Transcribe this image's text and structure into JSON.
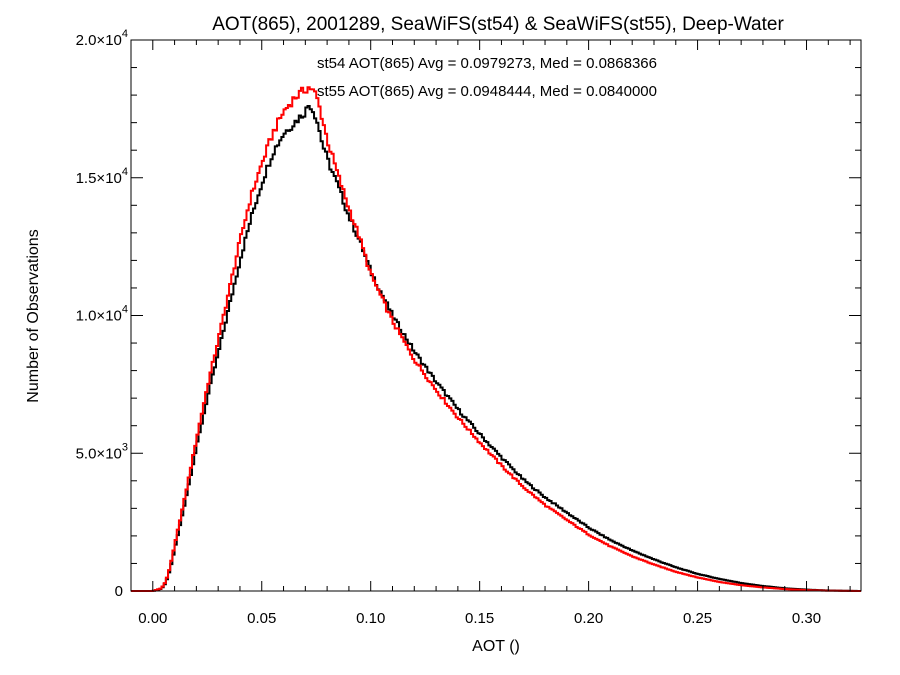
{
  "chart_data": {
    "type": "line",
    "title": "AOT(865), 2001289, SeaWiFS(st54) & SeaWiFS(st55), Deep-Water",
    "xlabel": "AOT ()",
    "ylabel": "Number of Observations",
    "xlim": [
      -0.01,
      0.325
    ],
    "ylim": [
      0,
      20000
    ],
    "xticks": [
      {
        "value": 0.0,
        "label": "0.00"
      },
      {
        "value": 0.05,
        "label": "0.05"
      },
      {
        "value": 0.1,
        "label": "0.10"
      },
      {
        "value": 0.15,
        "label": "0.15"
      },
      {
        "value": 0.2,
        "label": "0.20"
      },
      {
        "value": 0.25,
        "label": "0.25"
      },
      {
        "value": 0.3,
        "label": "0.30"
      }
    ],
    "yticks": [
      {
        "value": 0,
        "mant": "0",
        "exp": ""
      },
      {
        "value": 5000,
        "mant": "5.0×10",
        "exp": "3"
      },
      {
        "value": 10000,
        "mant": "1.0×10",
        "exp": "4"
      },
      {
        "value": 15000,
        "mant": "1.5×10",
        "exp": "4"
      },
      {
        "value": 20000,
        "mant": "2.0×10",
        "exp": "4"
      }
    ],
    "grid": false,
    "annotations": [
      {
        "text": "st54 AOT(865) Avg = 0.0979273, Med = 0.0868366",
        "color": "#000000"
      },
      {
        "text": "st55 AOT(865) Avg = 0.0948444, Med = 0.0840000",
        "color": "#ff0000"
      }
    ],
    "series": [
      {
        "color": "#000000",
        "x": [
          -0.01,
          0.0,
          0.004,
          0.006,
          0.008,
          0.01,
          0.012,
          0.015,
          0.02,
          0.025,
          0.03,
          0.035,
          0.04,
          0.045,
          0.05,
          0.055,
          0.06,
          0.065,
          0.07,
          0.072,
          0.075,
          0.078,
          0.08,
          0.085,
          0.09,
          0.095,
          0.1,
          0.11,
          0.12,
          0.13,
          0.14,
          0.15,
          0.16,
          0.17,
          0.18,
          0.19,
          0.2,
          0.21,
          0.22,
          0.23,
          0.24,
          0.25,
          0.26,
          0.27,
          0.28,
          0.29,
          0.3,
          0.31,
          0.32,
          0.325
        ],
        "y": [
          0,
          0,
          80,
          300,
          800,
          1500,
          2200,
          3300,
          5200,
          7000,
          8600,
          10300,
          12000,
          13500,
          14800,
          15900,
          16600,
          17000,
          17400,
          17700,
          17200,
          16200,
          15700,
          14700,
          13600,
          12700,
          11600,
          10000,
          8700,
          7600,
          6600,
          5700,
          4850,
          4050,
          3400,
          2850,
          2300,
          1850,
          1470,
          1150,
          860,
          620,
          440,
          290,
          180,
          100,
          50,
          20,
          5,
          0
        ]
      },
      {
        "color": "#ff0000",
        "x": [
          -0.01,
          0.0,
          0.004,
          0.006,
          0.008,
          0.01,
          0.012,
          0.015,
          0.02,
          0.025,
          0.03,
          0.035,
          0.04,
          0.045,
          0.05,
          0.055,
          0.06,
          0.065,
          0.07,
          0.072,
          0.075,
          0.078,
          0.08,
          0.085,
          0.09,
          0.095,
          0.1,
          0.11,
          0.12,
          0.13,
          0.14,
          0.15,
          0.16,
          0.17,
          0.18,
          0.19,
          0.2,
          0.21,
          0.22,
          0.23,
          0.24,
          0.25,
          0.26,
          0.27,
          0.28,
          0.29,
          0.3,
          0.31,
          0.32,
          0.325
        ],
        "y": [
          0,
          0,
          100,
          350,
          900,
          1650,
          2400,
          3500,
          5500,
          7400,
          9100,
          10900,
          12700,
          14300,
          15500,
          16600,
          17400,
          17900,
          18200,
          18300,
          18000,
          17100,
          16400,
          15100,
          13900,
          12800,
          11500,
          9800,
          8400,
          7300,
          6300,
          5400,
          4550,
          3780,
          3120,
          2580,
          2050,
          1620,
          1260,
          960,
          700,
          490,
          330,
          210,
          130,
          70,
          30,
          10,
          3,
          0
        ]
      }
    ]
  }
}
